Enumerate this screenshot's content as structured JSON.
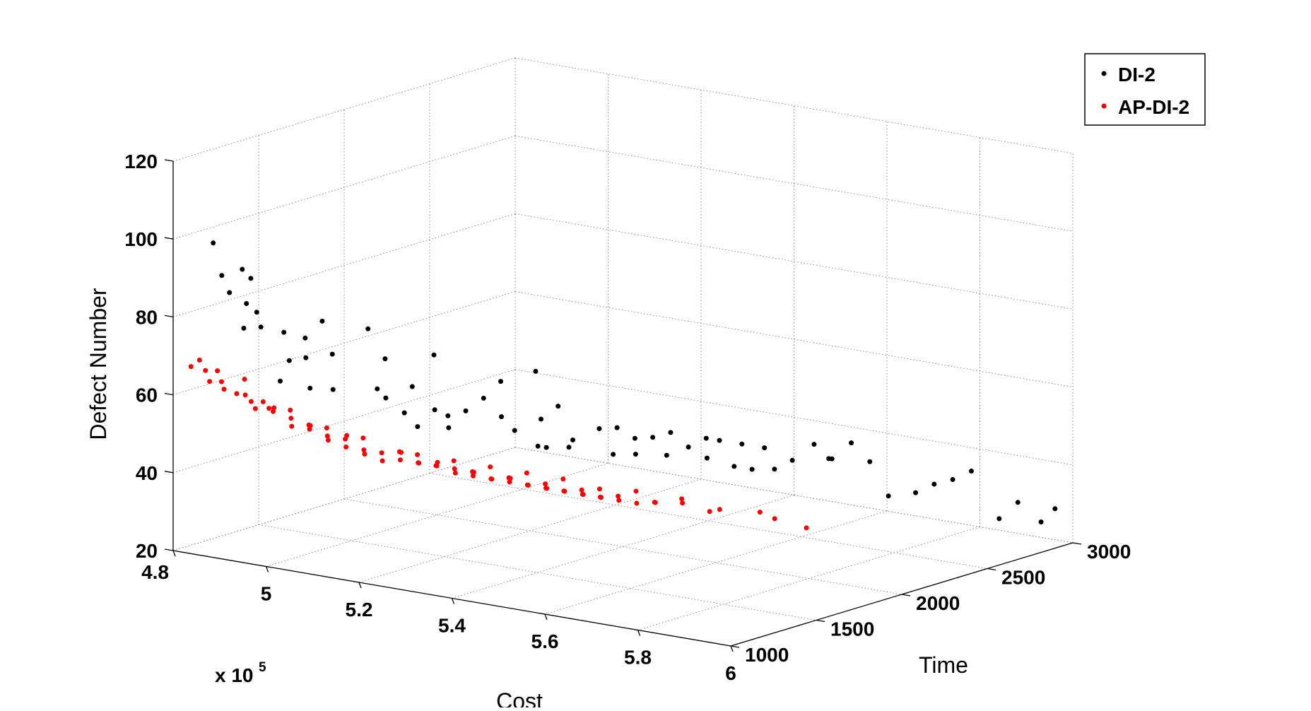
{
  "chart_data": {
    "type": "scatter3d",
    "xlabel": "Cost",
    "ylabel": "Time",
    "zlabel": "Defect Number",
    "x_multiplier": "x 10",
    "x_multiplier_exponent": "5",
    "x_ticks": [
      "4.8",
      "5",
      "5.2",
      "5.4",
      "5.6",
      "5.8",
      "6"
    ],
    "y_ticks": [
      "1000",
      "1500",
      "2000",
      "2500",
      "3000"
    ],
    "z_ticks": [
      "20",
      "40",
      "60",
      "80",
      "100",
      "120"
    ],
    "xlim": [
      480000,
      600000
    ],
    "ylim": [
      1000,
      3000
    ],
    "zlim": [
      20,
      120
    ],
    "grid": true,
    "legend_position": "top-right",
    "series": [
      {
        "name": "DI-2",
        "color": "#000000",
        "points": [
          [
            482000,
            1180,
            97
          ],
          [
            482000,
            1230,
            88
          ],
          [
            482000,
            1275,
            83
          ],
          [
            482000,
            1350,
            88
          ],
          [
            482000,
            1400,
            85
          ],
          [
            484000,
            1320,
            80
          ],
          [
            484000,
            1380,
            77
          ],
          [
            486000,
            1250,
            75
          ],
          [
            486000,
            1350,
            74
          ],
          [
            488000,
            1430,
            72
          ],
          [
            490000,
            1500,
            70
          ],
          [
            490000,
            1600,
            73
          ],
          [
            491000,
            1380,
            66
          ],
          [
            492000,
            1450,
            66
          ],
          [
            492000,
            1300,
            62
          ],
          [
            494000,
            1550,
            66
          ],
          [
            494000,
            1420,
            59
          ],
          [
            496000,
            1500,
            58
          ],
          [
            498000,
            1750,
            63
          ],
          [
            498000,
            1650,
            72
          ],
          [
            500000,
            1650,
            57
          ],
          [
            500000,
            1700,
            54
          ],
          [
            502000,
            1800,
            56
          ],
          [
            503000,
            1900,
            63
          ],
          [
            504000,
            1700,
            51
          ],
          [
            505000,
            1750,
            47
          ],
          [
            505000,
            1850,
            50
          ],
          [
            506000,
            1900,
            48
          ],
          [
            508000,
            1950,
            49
          ],
          [
            508000,
            1850,
            46
          ],
          [
            510000,
            2000,
            52
          ],
          [
            510000,
            2100,
            55
          ],
          [
            512000,
            2050,
            47
          ],
          [
            512000,
            2250,
            56
          ],
          [
            513000,
            2100,
            43
          ],
          [
            515000,
            2200,
            45
          ],
          [
            515000,
            2300,
            47
          ],
          [
            518000,
            2100,
            40
          ],
          [
            518000,
            2150,
            39
          ],
          [
            520000,
            2250,
            40
          ],
          [
            521000,
            2200,
            39
          ],
          [
            522000,
            2350,
            42
          ],
          [
            524000,
            2400,
            42
          ],
          [
            525000,
            2350,
            36
          ],
          [
            526000,
            2450,
            39
          ],
          [
            528000,
            2500,
            39
          ],
          [
            528000,
            2400,
            36
          ],
          [
            530000,
            2550,
            40
          ],
          [
            531000,
            2500,
            35
          ],
          [
            532000,
            2600,
            36
          ],
          [
            534000,
            2650,
            38
          ],
          [
            535000,
            2700,
            37
          ],
          [
            536000,
            2600,
            34
          ],
          [
            538000,
            2750,
            36
          ],
          [
            540000,
            2650,
            32
          ],
          [
            541000,
            2800,
            35
          ],
          [
            542000,
            2700,
            31
          ],
          [
            545000,
            2750,
            31
          ],
          [
            547000,
            2800,
            33
          ],
          [
            548000,
            2900,
            36
          ],
          [
            550000,
            2950,
            32
          ],
          [
            553000,
            2850,
            34
          ],
          [
            556000,
            2900,
            38
          ],
          [
            560000,
            2900,
            34
          ],
          [
            564000,
            2900,
            26
          ],
          [
            568000,
            2950,
            27
          ],
          [
            572000,
            2950,
            30
          ],
          [
            576000,
            2950,
            32
          ],
          [
            580000,
            2950,
            35
          ],
          [
            586000,
            2950,
            24
          ],
          [
            590000,
            2950,
            29
          ],
          [
            595000,
            2950,
            25
          ],
          [
            598000,
            2950,
            29
          ]
        ]
      },
      {
        "name": "AP-DI-2",
        "color": "#ff0000",
        "points": [
          [
            482000,
            1050,
            67
          ],
          [
            482000,
            1100,
            68
          ],
          [
            484000,
            1080,
            66
          ],
          [
            484000,
            1150,
            65
          ],
          [
            486000,
            1050,
            64
          ],
          [
            486000,
            1120,
            63
          ],
          [
            488000,
            1080,
            62
          ],
          [
            488000,
            1200,
            63
          ],
          [
            490000,
            1100,
            61
          ],
          [
            490000,
            1150,
            60
          ],
          [
            492000,
            1130,
            59
          ],
          [
            492000,
            1200,
            58
          ],
          [
            494000,
            1100,
            58
          ],
          [
            494000,
            1180,
            57
          ],
          [
            496000,
            1150,
            57
          ],
          [
            496000,
            1250,
            56
          ],
          [
            498000,
            1200,
            55
          ],
          [
            498000,
            1100,
            59
          ],
          [
            500000,
            1150,
            54
          ],
          [
            500000,
            1250,
            53
          ],
          [
            502000,
            1200,
            53
          ],
          [
            502000,
            1300,
            52
          ],
          [
            504000,
            1250,
            51
          ],
          [
            504000,
            1150,
            55
          ],
          [
            506000,
            1300,
            50
          ],
          [
            506000,
            1200,
            51
          ],
          [
            508000,
            1250,
            49
          ],
          [
            508000,
            1350,
            50
          ],
          [
            510000,
            1300,
            48
          ],
          [
            510000,
            1200,
            53
          ],
          [
            512000,
            1350,
            47
          ],
          [
            512000,
            1250,
            48
          ],
          [
            514000,
            1300,
            46
          ],
          [
            514000,
            1400,
            47
          ],
          [
            516000,
            1350,
            46
          ],
          [
            516000,
            1450,
            46
          ],
          [
            518000,
            1400,
            45
          ],
          [
            518000,
            1300,
            49
          ],
          [
            520000,
            1450,
            44
          ],
          [
            520000,
            1350,
            46
          ],
          [
            522000,
            1400,
            45
          ],
          [
            522000,
            1500,
            45
          ],
          [
            524000,
            1450,
            44
          ],
          [
            524000,
            1350,
            47
          ],
          [
            526000,
            1500,
            43
          ],
          [
            526000,
            1400,
            44
          ],
          [
            528000,
            1450,
            43
          ],
          [
            528000,
            1550,
            44
          ],
          [
            530000,
            1500,
            42
          ],
          [
            530000,
            1400,
            45
          ],
          [
            532000,
            1550,
            42
          ],
          [
            532000,
            1450,
            43
          ],
          [
            534000,
            1500,
            42
          ],
          [
            534000,
            1600,
            43
          ],
          [
            536000,
            1550,
            41
          ],
          [
            536000,
            1450,
            44
          ],
          [
            538000,
            1600,
            41
          ],
          [
            538000,
            1500,
            42
          ],
          [
            540000,
            1550,
            41
          ],
          [
            540000,
            1650,
            42
          ],
          [
            542000,
            1600,
            40
          ],
          [
            542000,
            1500,
            42
          ],
          [
            544000,
            1650,
            40
          ],
          [
            544000,
            1550,
            41
          ],
          [
            546000,
            1600,
            40
          ],
          [
            546000,
            1700,
            40
          ],
          [
            548000,
            1650,
            39
          ],
          [
            548000,
            1550,
            41
          ],
          [
            550000,
            1700,
            39
          ],
          [
            550000,
            1600,
            40
          ],
          [
            552000,
            1650,
            39
          ],
          [
            552000,
            1750,
            40
          ],
          [
            554000,
            1700,
            38
          ],
          [
            556000,
            1750,
            38
          ],
          [
            558000,
            1700,
            39
          ],
          [
            560000,
            1800,
            39
          ],
          [
            562000,
            1750,
            39
          ],
          [
            566000,
            1800,
            37
          ],
          [
            570000,
            1750,
            39
          ],
          [
            575000,
            1850,
            38
          ],
          [
            580000,
            1800,
            38
          ],
          [
            585000,
            1850,
            36
          ]
        ]
      }
    ]
  }
}
